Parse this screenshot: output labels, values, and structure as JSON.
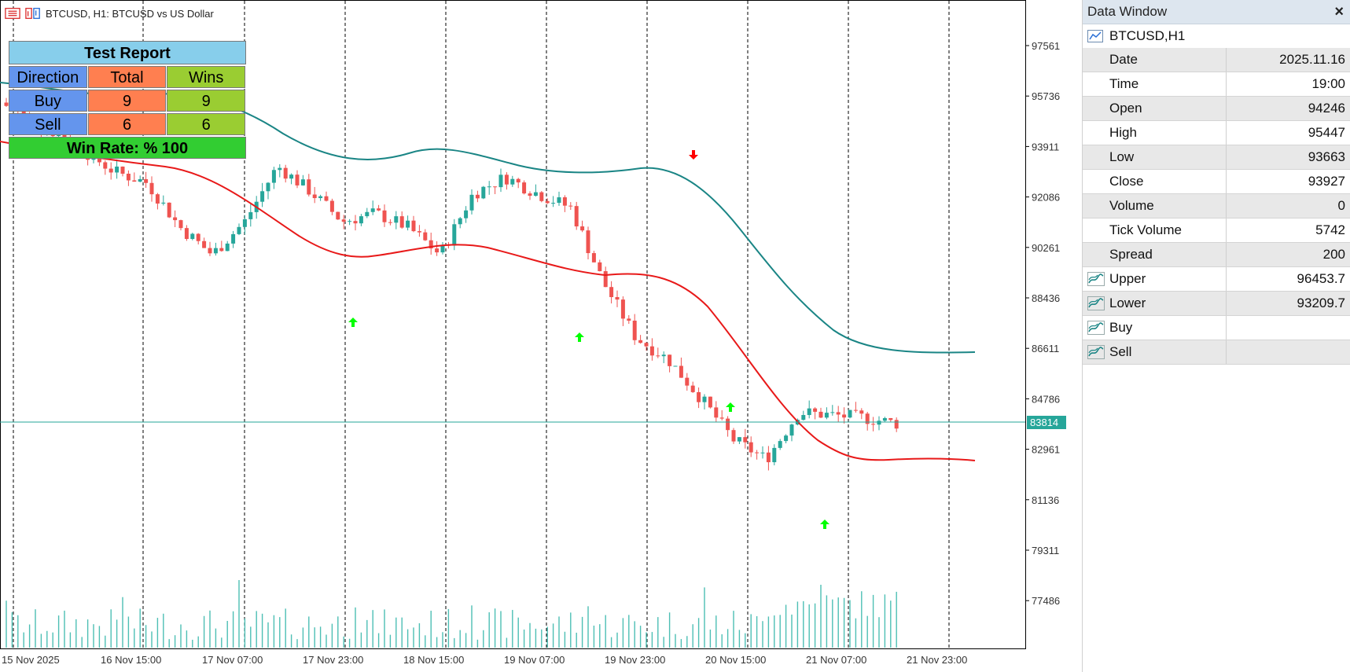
{
  "chart": {
    "title": "BTCUSD, H1:  BTCUSD vs US Dollar",
    "current_price": "83814",
    "price_axis_labels": [
      "97561",
      "95736",
      "93911",
      "92086",
      "90261",
      "88436",
      "86611",
      "84786",
      "82961",
      "81136",
      "79311",
      "77486"
    ],
    "time_axis_labels": [
      "15 Nov 2025",
      "16 Nov 15:00",
      "17 Nov 07:00",
      "17 Nov 23:00",
      "18 Nov 15:00",
      "19 Nov 07:00",
      "19 Nov 23:00",
      "20 Nov 15:00",
      "21 Nov 07:00",
      "21 Nov 23:00"
    ],
    "colors": {
      "bull": "#26a69a",
      "bear": "#ef5350",
      "upper_band": "#1a8585",
      "lower_band": "#e81919",
      "volume": "#4dbfb4",
      "buy_arrow": "#00ff00",
      "sell_arrow": "#ff0000",
      "price_line": "#26a69a"
    }
  },
  "report": {
    "title": "Test Report",
    "headers": [
      "Direction",
      "Total",
      "Wins"
    ],
    "rows": [
      [
        "Buy",
        "9",
        "9"
      ],
      [
        "Sell",
        "6",
        "6"
      ]
    ],
    "footer": "Win Rate: %  100"
  },
  "data_window": {
    "title": "Data Window",
    "close_label": "×",
    "symbol": "BTCUSD,H1",
    "rows": [
      {
        "name": "Date",
        "value": "2025.11.16"
      },
      {
        "name": "Time",
        "value": "19:00"
      },
      {
        "name": "Open",
        "value": "94246"
      },
      {
        "name": "High",
        "value": "95447"
      },
      {
        "name": "Low",
        "value": "93663"
      },
      {
        "name": "Close",
        "value": "93927"
      },
      {
        "name": "Volume",
        "value": "0"
      },
      {
        "name": "Tick Volume",
        "value": "5742"
      },
      {
        "name": "Spread",
        "value": "200"
      }
    ],
    "indicators": [
      {
        "name": "Upper",
        "value": "96453.7"
      },
      {
        "name": "Lower",
        "value": "93209.7"
      },
      {
        "name": "Buy",
        "value": ""
      },
      {
        "name": "Sell",
        "value": ""
      }
    ]
  }
}
